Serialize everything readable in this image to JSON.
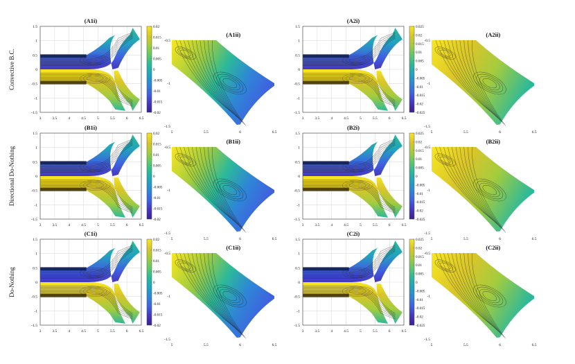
{
  "figure": {
    "row_labels": [
      "Convective B.C.",
      "Directional Do-Nothing",
      "Do-Nothing"
    ]
  },
  "chart_data": [
    {
      "id": "A1i",
      "type": "heatmap",
      "title": "(A1i)",
      "x_ticks": [
        "3",
        "3.5",
        "4",
        "4.5",
        "5",
        "5.5",
        "6",
        "6.5"
      ],
      "y_ticks": [
        "1.5",
        "1",
        "0.5",
        "0",
        "-0.5",
        "-1",
        "-1.5"
      ],
      "xlim": [
        3,
        6.5
      ],
      "ylim": [
        -1.5,
        1.5
      ],
      "grid": true,
      "colorbar": {
        "ticks": [
          "0.02",
          "0.015",
          "0.01",
          "0.005",
          "0",
          "-0.005",
          "-0.01",
          "-0.015",
          "-0.02"
        ],
        "range": [
          -0.02,
          0.02
        ]
      }
    },
    {
      "id": "A1ii",
      "type": "heatmap",
      "title": "(A1ii)",
      "x_ticks": [
        "5",
        "5.5",
        "6",
        "6.5"
      ],
      "y_ticks": [
        "-0.5",
        "-1",
        "-1.5"
      ],
      "xlim": [
        5,
        6.5
      ],
      "ylim": [
        -1.5,
        -0.5
      ]
    },
    {
      "id": "A2i",
      "type": "heatmap",
      "title": "(A2i)",
      "x_ticks": [
        "3",
        "3.5",
        "4",
        "4.5",
        "5",
        "5.5",
        "6",
        "6.5"
      ],
      "y_ticks": [
        "1.5",
        "1",
        "0.5",
        "0",
        "-0.5",
        "-1",
        "-1.5"
      ],
      "xlim": [
        3,
        6.5
      ],
      "ylim": [
        -1.5,
        1.5
      ],
      "grid": true,
      "colorbar": {
        "ticks": [
          "0.025",
          "0.02",
          "0.015",
          "0.01",
          "0.005",
          "0",
          "-0.005",
          "-0.01",
          "-0.015",
          "-0.02",
          "-0.025"
        ],
        "range": [
          -0.025,
          0.025
        ]
      }
    },
    {
      "id": "A2ii",
      "type": "heatmap",
      "title": "(A2ii)",
      "x_ticks": [
        "5",
        "5.5",
        "6",
        "6.5"
      ],
      "y_ticks": [
        "-0.5",
        "-1",
        "-1.5"
      ],
      "xlim": [
        5,
        6.5
      ],
      "ylim": [
        -1.5,
        -0.5
      ]
    },
    {
      "id": "B1i",
      "type": "heatmap",
      "title": "(B1i)",
      "x_ticks": [
        "3",
        "3.5",
        "4",
        "4.5",
        "5",
        "5.5",
        "6",
        "6.5"
      ],
      "y_ticks": [
        "1.5",
        "1",
        "0.5",
        "0",
        "-0.5",
        "-1",
        "-1.5"
      ],
      "xlim": [
        3,
        6.5
      ],
      "ylim": [
        -1.5,
        1.5
      ],
      "grid": true,
      "colorbar": {
        "ticks": [
          "0.02",
          "0.015",
          "0.01",
          "0.005",
          "0",
          "-0.005",
          "-0.01",
          "-0.015",
          "-0.02"
        ],
        "range": [
          -0.02,
          0.02
        ]
      }
    },
    {
      "id": "B1ii",
      "type": "heatmap",
      "title": "(B1ii)",
      "x_ticks": [
        "5",
        "5.5",
        "6",
        "6.5"
      ],
      "y_ticks": [
        "-0.5",
        "-1",
        "-1.5"
      ],
      "xlim": [
        5,
        6.5
      ],
      "ylim": [
        -1.5,
        -0.5
      ]
    },
    {
      "id": "B2i",
      "type": "heatmap",
      "title": "(B2i)",
      "x_ticks": [
        "3",
        "3.5",
        "4",
        "4.5",
        "5",
        "5.5",
        "6",
        "6.5"
      ],
      "y_ticks": [
        "1.5",
        "1",
        "0.5",
        "0",
        "-0.5",
        "-1",
        "-1.5"
      ],
      "xlim": [
        3,
        6.5
      ],
      "ylim": [
        -1.5,
        1.5
      ],
      "grid": true,
      "colorbar": {
        "ticks": [
          "0.025",
          "0.02",
          "0.015",
          "0.01",
          "0.005",
          "0",
          "-0.005",
          "-0.01",
          "-0.015",
          "-0.02",
          "-0.025"
        ],
        "range": [
          -0.025,
          0.025
        ]
      }
    },
    {
      "id": "B2ii",
      "type": "heatmap",
      "title": "(B2ii)",
      "x_ticks": [
        "5",
        "5.5",
        "6",
        "6.5"
      ],
      "y_ticks": [
        "-0.5",
        "-1",
        "-1.5"
      ],
      "xlim": [
        5,
        6.5
      ],
      "ylim": [
        -1.5,
        -0.5
      ]
    },
    {
      "id": "C1i",
      "type": "heatmap",
      "title": "(C1i)",
      "x_ticks": [
        "3",
        "3.5",
        "4",
        "4.5",
        "5",
        "5.5",
        "6",
        "6.5"
      ],
      "y_ticks": [
        "1.5",
        "1",
        "0.5",
        "0",
        "-0.5",
        "-1",
        "-1.5"
      ],
      "xlim": [
        3,
        6.5
      ],
      "ylim": [
        -1.5,
        1.5
      ],
      "grid": true,
      "colorbar": {
        "ticks": [
          "0.02",
          "0.015",
          "0.01",
          "0.005",
          "0",
          "-0.005",
          "-0.01",
          "-0.015",
          "-0.02"
        ],
        "range": [
          -0.02,
          0.02
        ]
      }
    },
    {
      "id": "C1ii",
      "type": "heatmap",
      "title": "(C1ii)",
      "x_ticks": [
        "5",
        "5.5",
        "6",
        "6.5"
      ],
      "y_ticks": [
        "-0.5",
        "-1",
        "-1.5"
      ],
      "xlim": [
        5,
        6.5
      ],
      "ylim": [
        -1.5,
        -0.5
      ]
    },
    {
      "id": "C2i",
      "type": "heatmap",
      "title": "(C2i)",
      "x_ticks": [
        "3",
        "3.5",
        "4",
        "4.5",
        "5",
        "5.5",
        "6",
        "6.5"
      ],
      "y_ticks": [
        "1.5",
        "1",
        "0.5",
        "0",
        "-0.5",
        "-1",
        "-1.5"
      ],
      "xlim": [
        3,
        6.5
      ],
      "ylim": [
        -1.5,
        1.5
      ],
      "grid": true,
      "colorbar": {
        "ticks": [
          "0.025",
          "0.02",
          "0.015",
          "0.01",
          "0.005",
          "0",
          "-0.005",
          "-0.01",
          "-0.015",
          "-0.02",
          "-0.025"
        ],
        "range": [
          -0.025,
          0.025
        ]
      }
    },
    {
      "id": "C2ii",
      "type": "heatmap",
      "title": "(C2ii)",
      "x_ticks": [
        "5",
        "5.5",
        "6",
        "6.5"
      ],
      "y_ticks": [
        "-0.5",
        "-1",
        "-1.5"
      ],
      "xlim": [
        5,
        6.5
      ],
      "ylim": [
        -1.5,
        -0.5
      ]
    }
  ],
  "colors": {
    "colormap": [
      "#3b1f8f",
      "#4537c0",
      "#3f62e0",
      "#2e86d6",
      "#21a3bd",
      "#2cb99a",
      "#62c76a",
      "#a3cc3e",
      "#d9c52a",
      "#f8e621"
    ],
    "contour_line": "#1b1b1b",
    "axis": "#555555",
    "grid": "#dcdcdc",
    "text": "#111111"
  }
}
